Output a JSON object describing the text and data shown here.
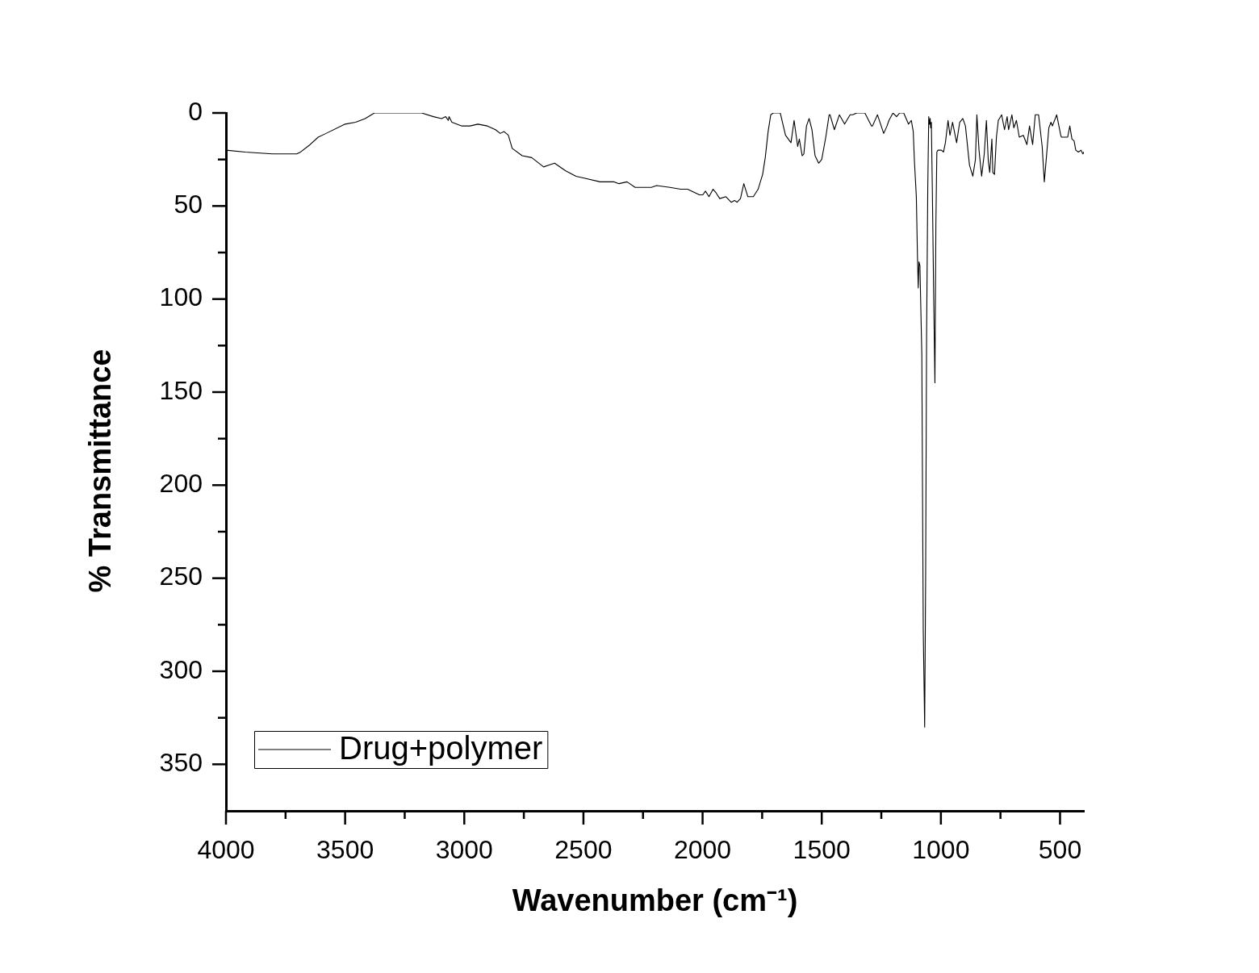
{
  "chart_data": {
    "type": "line",
    "xlabel": "Wavenumber (cm⁻¹)",
    "ylabel": "% Transmittance",
    "x": [
      4000,
      3919,
      3805,
      3703,
      3687,
      3647,
      3613,
      3580,
      3500,
      3456,
      3416,
      3377,
      3179,
      3129,
      3095,
      3078,
      3067,
      3064,
      3052,
      3010,
      2976,
      2943,
      2903,
      2869,
      2849,
      2833,
      2815,
      2799,
      2757,
      2717,
      2667,
      2644,
      2621,
      2576,
      2531,
      2497,
      2430,
      2373,
      2351,
      2317,
      2283,
      2215,
      2193,
      2137,
      2092,
      2063,
      2013,
      1999,
      1988,
      1973,
      1956,
      1943,
      1928,
      1902,
      1880,
      1866,
      1855,
      1841,
      1827,
      1810,
      1787,
      1767,
      1748,
      1737,
      1725,
      1714,
      1703,
      1674,
      1652,
      1629,
      1616,
      1601,
      1594,
      1582,
      1575,
      1564,
      1553,
      1541,
      1528,
      1513,
      1500,
      1483,
      1469,
      1465,
      1447,
      1426,
      1404,
      1381,
      1370,
      1353,
      1319,
      1291,
      1287,
      1266,
      1240,
      1226,
      1218,
      1201,
      1186,
      1173,
      1156,
      1136,
      1124,
      1116,
      1111,
      1103,
      1098,
      1095,
      1092,
      1088,
      1080,
      1074,
      1068,
      1064,
      1060,
      1055,
      1051,
      1048,
      1045,
      1043,
      1040,
      1036,
      1030,
      1025,
      1021,
      1017,
      1012,
      998,
      989,
      981,
      970,
      962,
      951,
      934,
      921,
      908,
      897,
      880,
      866,
      855,
      849,
      840,
      829,
      818,
      809,
      801,
      795,
      786,
      782,
      775,
      767,
      759,
      745,
      733,
      722,
      716,
      702,
      694,
      683,
      671,
      654,
      639,
      628,
      615,
      604,
      590,
      575,
      566,
      558,
      547,
      538,
      532,
      514,
      497,
      494,
      468,
      459,
      450,
      441,
      434,
      423,
      412,
      404,
      400
    ],
    "series": [
      {
        "name": "Drug+polymer",
        "color": "#000000",
        "values": [
          20,
          21,
          22,
          22,
          21,
          17,
          13,
          11,
          6,
          5,
          3,
          0,
          0,
          2,
          3,
          2,
          4,
          2,
          5,
          7,
          7,
          6,
          7,
          9,
          11,
          10,
          12,
          19,
          23,
          24,
          29,
          28,
          27,
          31,
          34,
          35,
          37,
          37,
          38,
          37,
          40,
          40,
          39,
          40,
          41,
          41,
          44,
          44,
          42,
          45,
          41,
          43,
          46,
          45,
          48,
          47,
          48,
          46,
          38,
          45,
          45,
          41,
          33,
          24,
          10,
          1,
          0,
          0,
          12,
          16,
          4,
          18,
          14,
          23,
          22,
          7,
          3,
          9,
          23,
          27,
          25,
          13,
          1,
          1,
          9,
          1,
          6,
          1,
          1,
          0,
          0,
          7,
          7,
          1,
          11,
          7,
          4,
          0,
          2,
          0,
          0,
          6,
          4,
          10,
          26,
          45,
          79,
          94,
          80,
          82,
          130,
          278,
          330,
          250,
          120,
          40,
          2,
          6,
          3,
          8,
          5,
          40,
          100,
          145,
          60,
          21,
          20,
          20,
          21,
          16,
          4,
          12,
          5,
          16,
          5,
          3,
          7,
          28,
          34,
          25,
          1,
          20,
          34,
          22,
          4,
          26,
          32,
          14,
          32,
          33,
          13,
          4,
          1,
          9,
          2,
          9,
          1,
          8,
          4,
          13,
          12,
          17,
          7,
          17,
          1,
          1,
          18,
          37,
          25,
          8,
          5,
          7,
          1,
          12,
          13,
          13,
          7,
          14,
          15,
          20,
          21,
          20,
          22,
          21
        ]
      }
    ],
    "xlim": [
      4000,
      400
    ],
    "ylim": [
      375,
      0
    ],
    "xticks": [
      4000,
      {
        "value": 3750,
        "label": null
      },
      3500,
      {
        "value": 3250,
        "label": null
      },
      3000,
      {
        "value": 2750,
        "label": null
      },
      2500,
      {
        "value": 2250,
        "label": null
      },
      2000,
      {
        "value": 1750,
        "label": null
      },
      1500,
      {
        "value": 1250,
        "label": null
      },
      1000,
      {
        "value": 750,
        "label": null
      },
      500
    ],
    "yticks": [
      0,
      {
        "value": 25,
        "label": null
      },
      50,
      {
        "value": 75,
        "label": null
      },
      100,
      {
        "value": 125,
        "label": null
      },
      150,
      {
        "value": 175,
        "label": null
      },
      200,
      {
        "value": 225,
        "label": null
      },
      250,
      {
        "value": 275,
        "label": null
      },
      300,
      {
        "value": 325,
        "label": null
      },
      350
    ],
    "legend": "bottom left",
    "marker": "none",
    "line_style": "solid"
  }
}
